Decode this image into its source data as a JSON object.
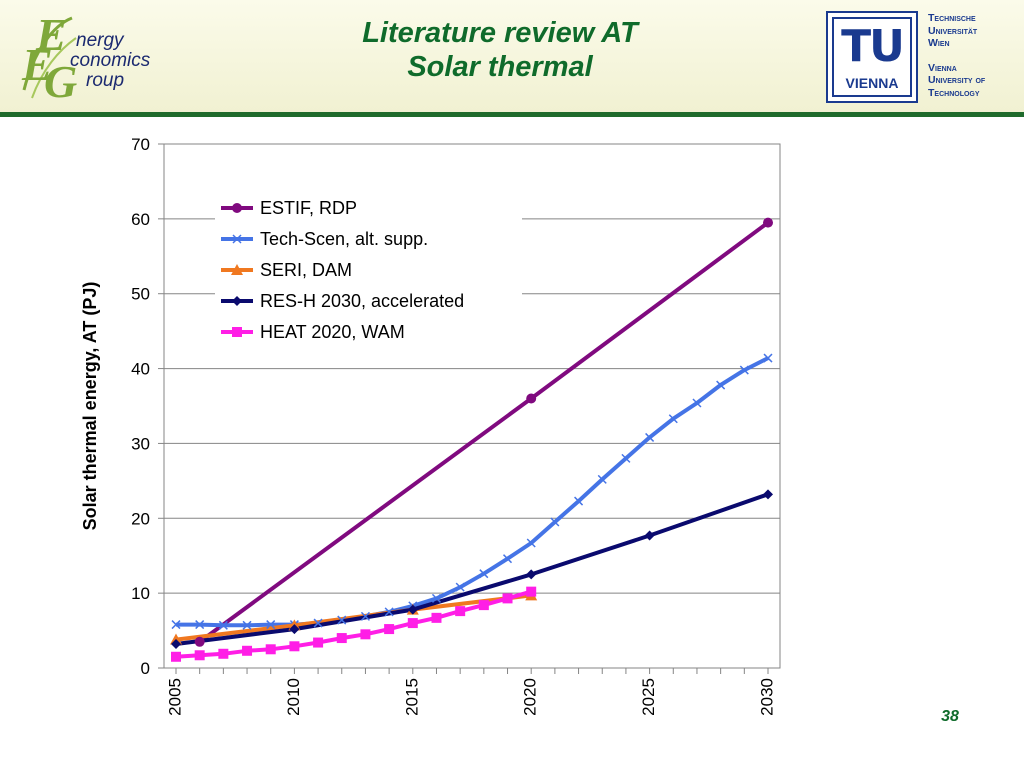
{
  "header": {
    "title_line1": "Literature review AT",
    "title_line2": "Solar thermal",
    "eeg_logo": {
      "letter1": "E",
      "letter2": "E",
      "letter3": "G",
      "word1": "nergy",
      "word2": "conomics",
      "word3": "roup"
    },
    "tu_logo": {
      "mark": "TU",
      "city": "VIENNA"
    },
    "tu_name": [
      "Technische",
      "Universität",
      "Wien",
      "Vienna",
      "University of",
      "Technology"
    ]
  },
  "page_number": "38",
  "colors": {
    "header_green": "#0f6b2b",
    "tu_blue": "#1a3a8f",
    "header_rule": "#1f6b2c"
  },
  "chart_data": {
    "type": "line",
    "title": "",
    "xlabel": "",
    "ylabel": "Solar thermal energy, AT (PJ)",
    "xlim": [
      2005,
      2030
    ],
    "ylim": [
      0,
      70
    ],
    "yticks": [
      0,
      10,
      20,
      30,
      40,
      50,
      60,
      70
    ],
    "xticks": [
      2005,
      2010,
      2015,
      2020,
      2025,
      2030
    ],
    "grid": "horizontal",
    "legend_position": "top-left",
    "series": [
      {
        "name": "ESTIF, RDP",
        "color": "#800a7f",
        "marker": "circle",
        "x": [
          2006,
          2020,
          2030
        ],
        "y": [
          3.5,
          36,
          59.5
        ]
      },
      {
        "name": "Tech-Scen, alt. supp.",
        "color": "#4574e6",
        "marker": "x",
        "x": [
          2005,
          2006,
          2007,
          2008,
          2009,
          2010,
          2011,
          2012,
          2013,
          2014,
          2015,
          2016,
          2017,
          2018,
          2019,
          2020,
          2021,
          2022,
          2023,
          2024,
          2025,
          2026,
          2027,
          2028,
          2029,
          2030
        ],
        "y": [
          5.8,
          5.8,
          5.7,
          5.7,
          5.8,
          5.8,
          6.0,
          6.4,
          6.9,
          7.5,
          8.3,
          9.3,
          10.8,
          12.6,
          14.6,
          16.7,
          19.5,
          22.3,
          25.2,
          28.0,
          30.8,
          33.3,
          35.4,
          37.8,
          39.8,
          41.4
        ]
      },
      {
        "name": "SERI, DAM",
        "color": "#f07820",
        "marker": "triangle",
        "x": [
          2005,
          2010,
          2015,
          2020
        ],
        "y": [
          3.8,
          5.7,
          7.8,
          9.7
        ]
      },
      {
        "name": "RES-H 2030, accelerated",
        "color": "#0a0a6e",
        "marker": "diamond",
        "x": [
          2005,
          2010,
          2015,
          2020,
          2025,
          2030
        ],
        "y": [
          3.2,
          5.2,
          7.8,
          12.5,
          17.7,
          23.2
        ]
      },
      {
        "name": "HEAT 2020, WAM",
        "color": "#ff1ee6",
        "marker": "square",
        "x": [
          2005,
          2006,
          2007,
          2008,
          2009,
          2010,
          2011,
          2012,
          2013,
          2014,
          2015,
          2016,
          2017,
          2018,
          2019,
          2020
        ],
        "y": [
          1.5,
          1.7,
          1.9,
          2.3,
          2.5,
          2.9,
          3.4,
          4.0,
          4.5,
          5.2,
          6.0,
          6.7,
          7.6,
          8.4,
          9.3,
          10.2
        ]
      }
    ]
  }
}
